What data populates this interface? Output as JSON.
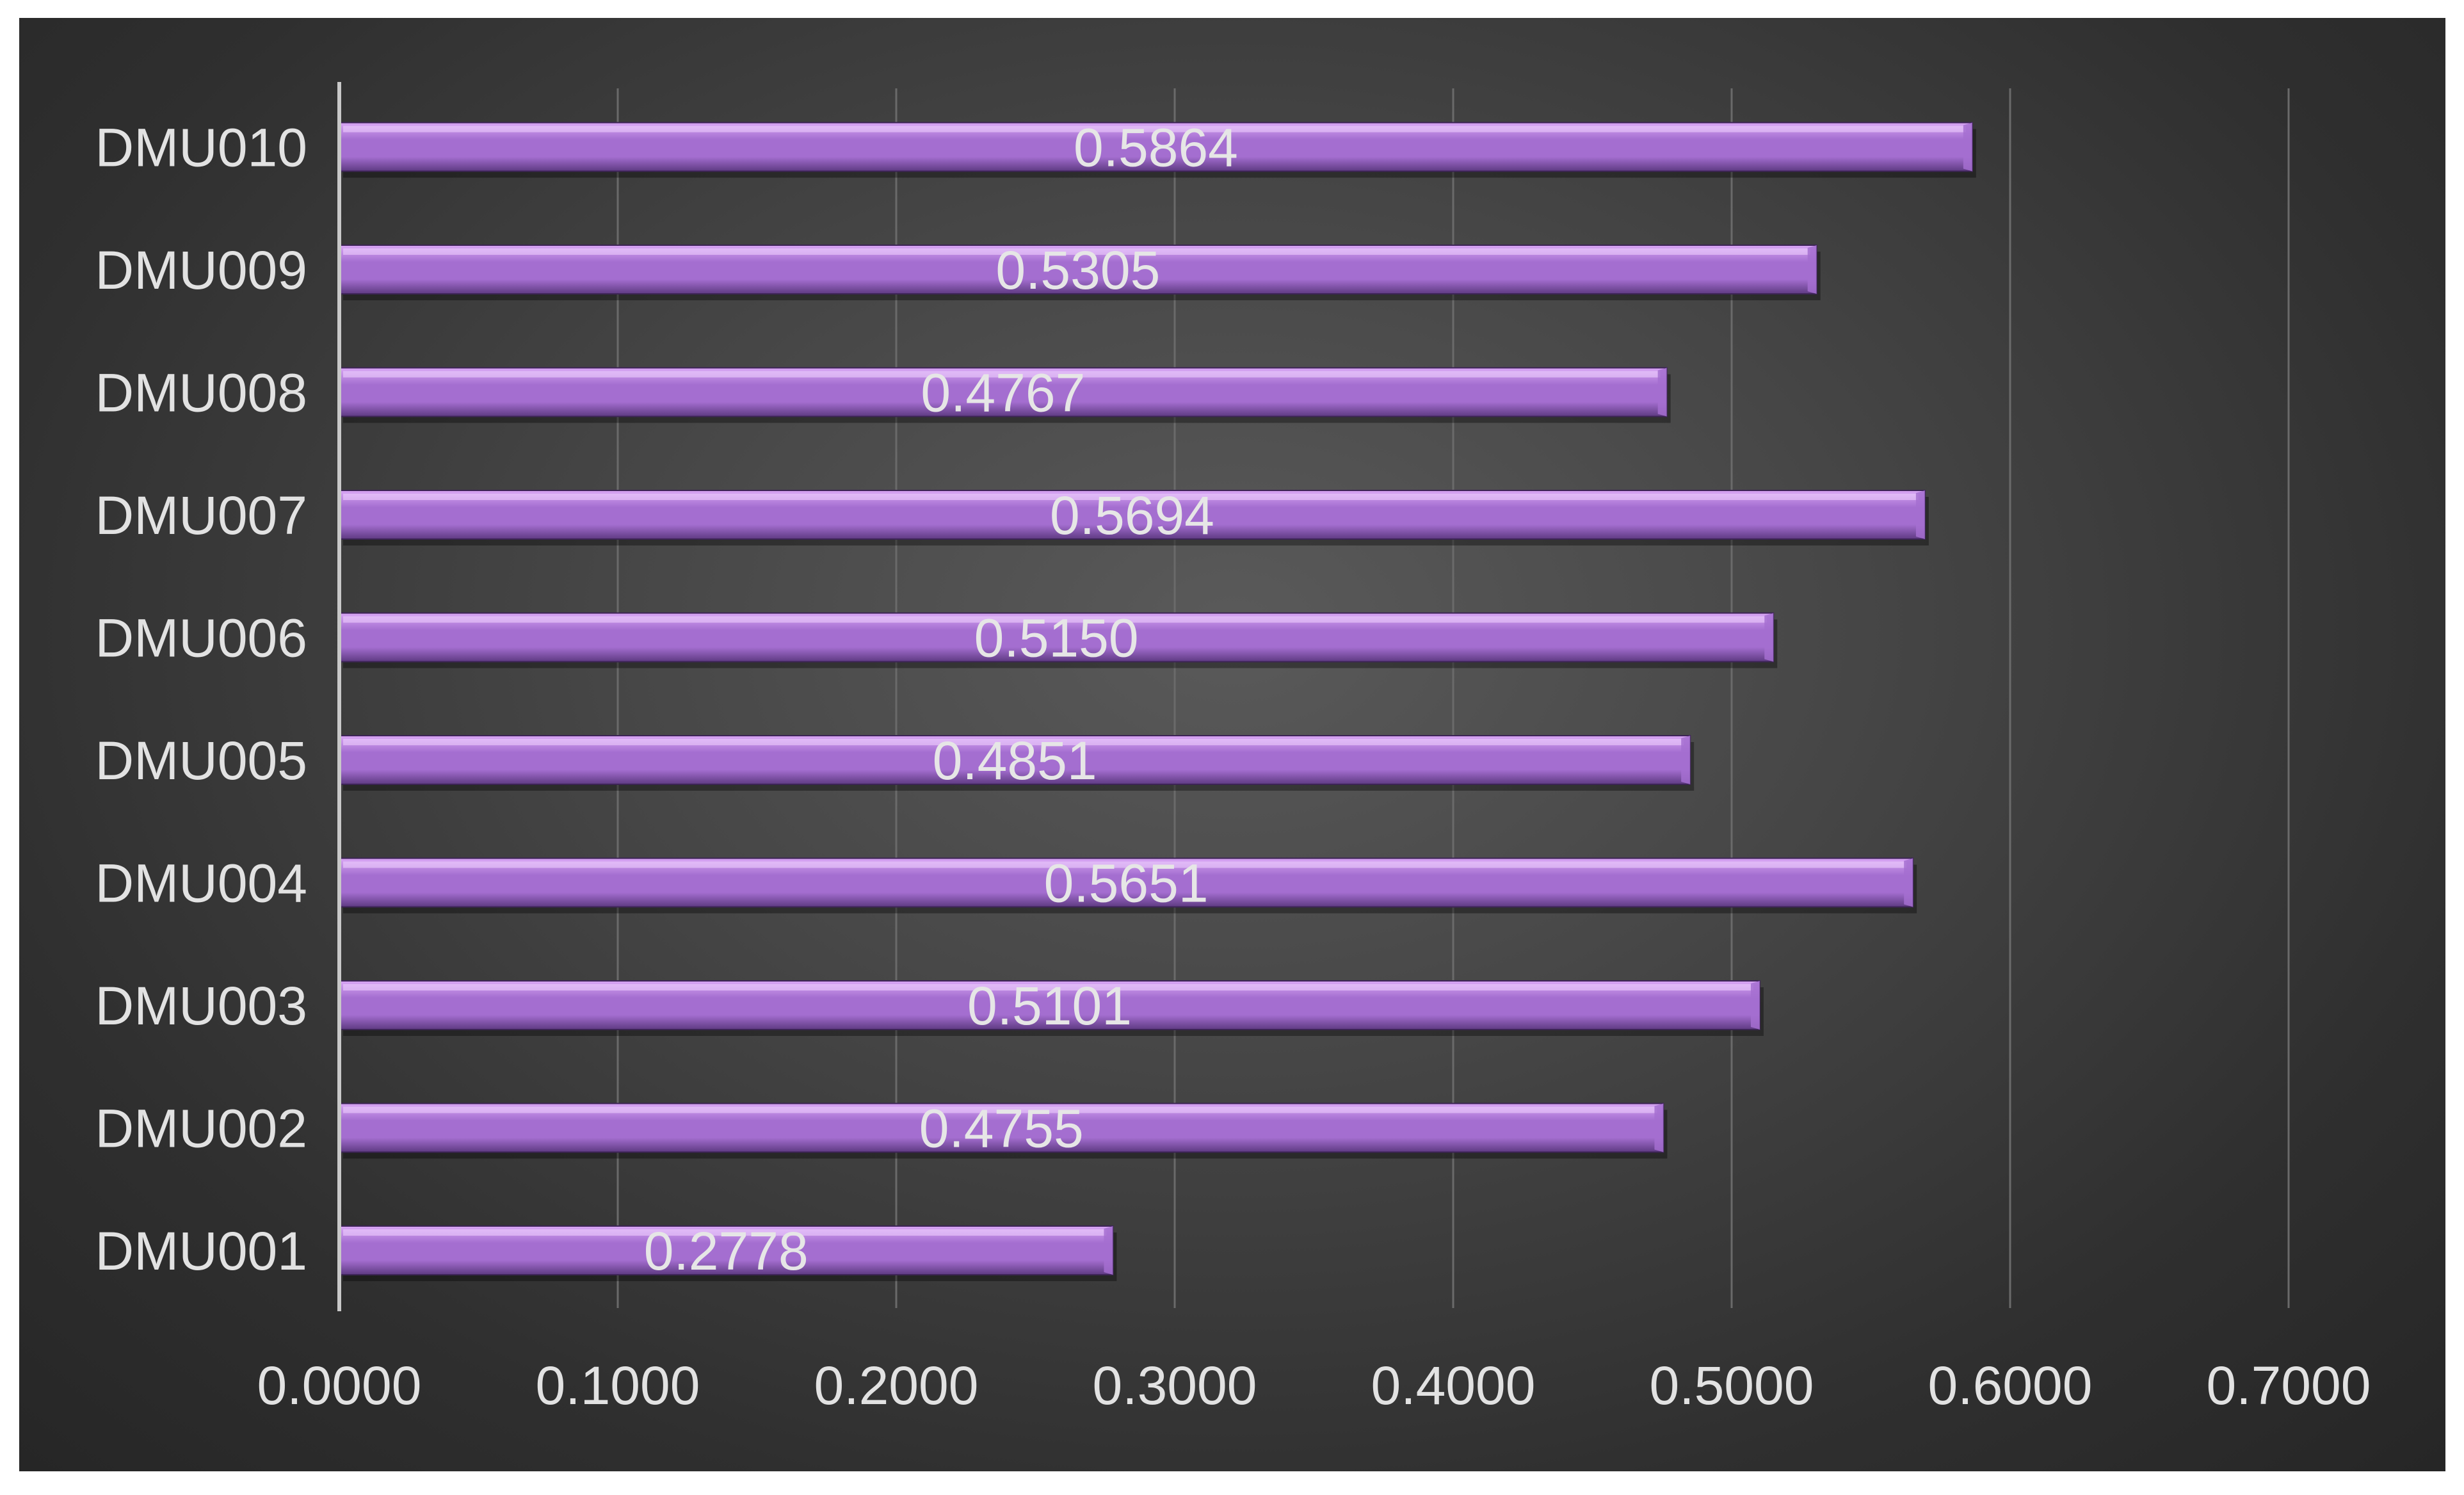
{
  "chart_data": {
    "type": "bar",
    "orientation": "horizontal",
    "categories": [
      "DMU001",
      "DMU002",
      "DMU003",
      "DMU004",
      "DMU005",
      "DMU006",
      "DMU007",
      "DMU008",
      "DMU009",
      "DMU010"
    ],
    "values": [
      0.2778,
      0.4755,
      0.5101,
      0.5651,
      0.4851,
      0.515,
      0.5694,
      0.4767,
      0.5305,
      0.5864
    ],
    "data_labels": [
      "0.2778",
      "0.4755",
      "0.5101",
      "0.5651",
      "0.4851",
      "0.5150",
      "0.5694",
      "0.4767",
      "0.5305",
      "0.5864"
    ],
    "x_ticks": [
      "0.0000",
      "0.1000",
      "0.2000",
      "0.3000",
      "0.4000",
      "0.5000",
      "0.6000",
      "0.7000"
    ],
    "xlim": [
      0,
      0.7
    ],
    "title": "",
    "xlabel": "",
    "ylabel": "",
    "grid": "vertical",
    "legend": "none",
    "colors": {
      "bar_top": "#d9a6f5",
      "bar_mid": "#a46ed0",
      "bar_bottom": "#5e3a82",
      "bar_edge": "#3d2456",
      "text": "#e2e2e2",
      "grid": "#6a6a6a",
      "axis": "#c8c8c8"
    }
  }
}
